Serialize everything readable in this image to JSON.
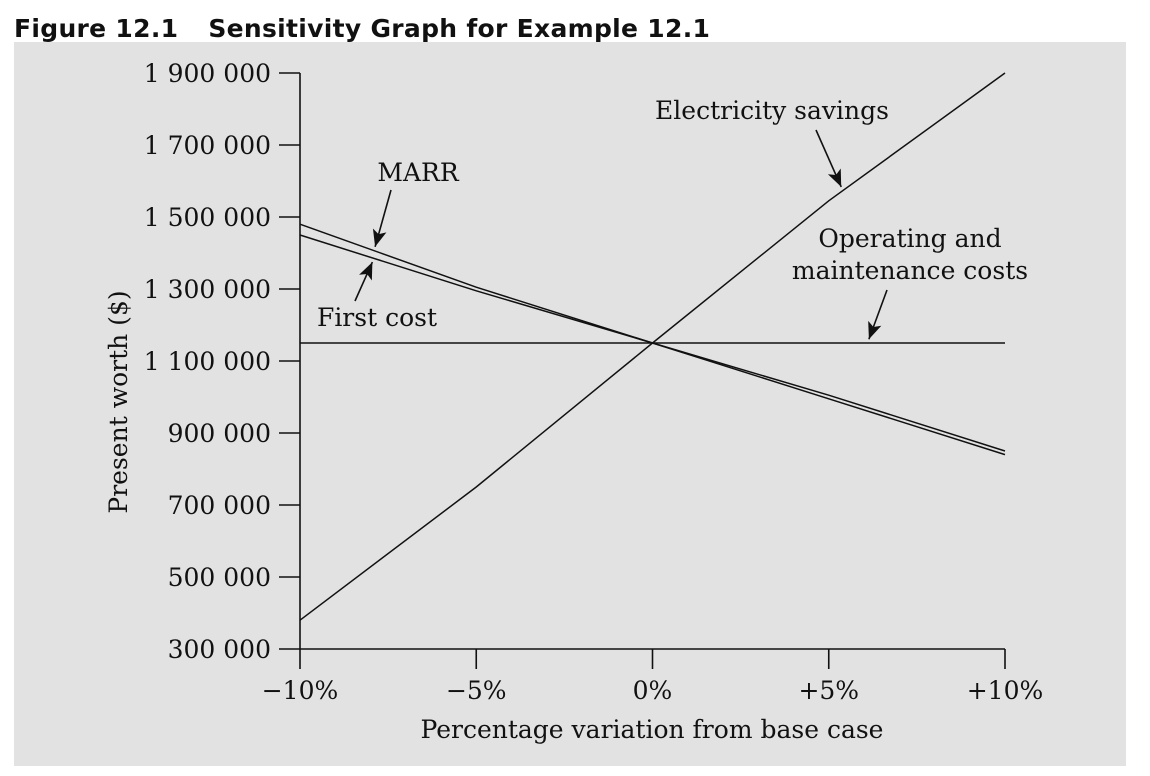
{
  "figure": {
    "number": "Figure 12.1",
    "title": "Sensitivity Graph for Example 12.1"
  },
  "chart_data": {
    "type": "line",
    "xlabel": "Percentage variation from base case",
    "ylabel": "Present worth ($)",
    "x": [
      -10,
      -5,
      0,
      5,
      10
    ],
    "x_tick_labels": [
      "−10%",
      "−5%",
      "0%",
      "+5%",
      "+10%"
    ],
    "xlim": [
      -10,
      10
    ],
    "ylim": [
      300000,
      1900000
    ],
    "y_ticks": [
      300000,
      500000,
      700000,
      900000,
      1100000,
      1300000,
      1500000,
      1700000,
      1900000
    ],
    "y_tick_labels": [
      "300 000",
      "500 000",
      "700 000",
      "900 000",
      "1 100 000",
      "1 300 000",
      "1 500 000",
      "1 700 000",
      "1 900 000"
    ],
    "grid": false,
    "series": [
      {
        "name": "Electricity savings",
        "values": [
          380000,
          750000,
          1150000,
          1545000,
          1900000
        ]
      },
      {
        "name": "MARR",
        "values": [
          1480000,
          1305000,
          1150000,
          1005000,
          850000
        ]
      },
      {
        "name": "First cost",
        "values": [
          1450000,
          1295000,
          1150000,
          995000,
          840000
        ]
      },
      {
        "name": "Operating and maintenance costs",
        "values": [
          1150000,
          1150000,
          1150000,
          1150000,
          1150000
        ]
      }
    ],
    "annotations": [
      {
        "series": "Electricity savings",
        "lines": [
          "Electricity savings"
        ]
      },
      {
        "series": "MARR",
        "lines": [
          "MARR"
        ]
      },
      {
        "series": "First cost",
        "lines": [
          "First cost"
        ]
      },
      {
        "series": "Operating and maintenance costs",
        "lines": [
          "Operating and",
          "maintenance costs"
        ]
      }
    ]
  }
}
